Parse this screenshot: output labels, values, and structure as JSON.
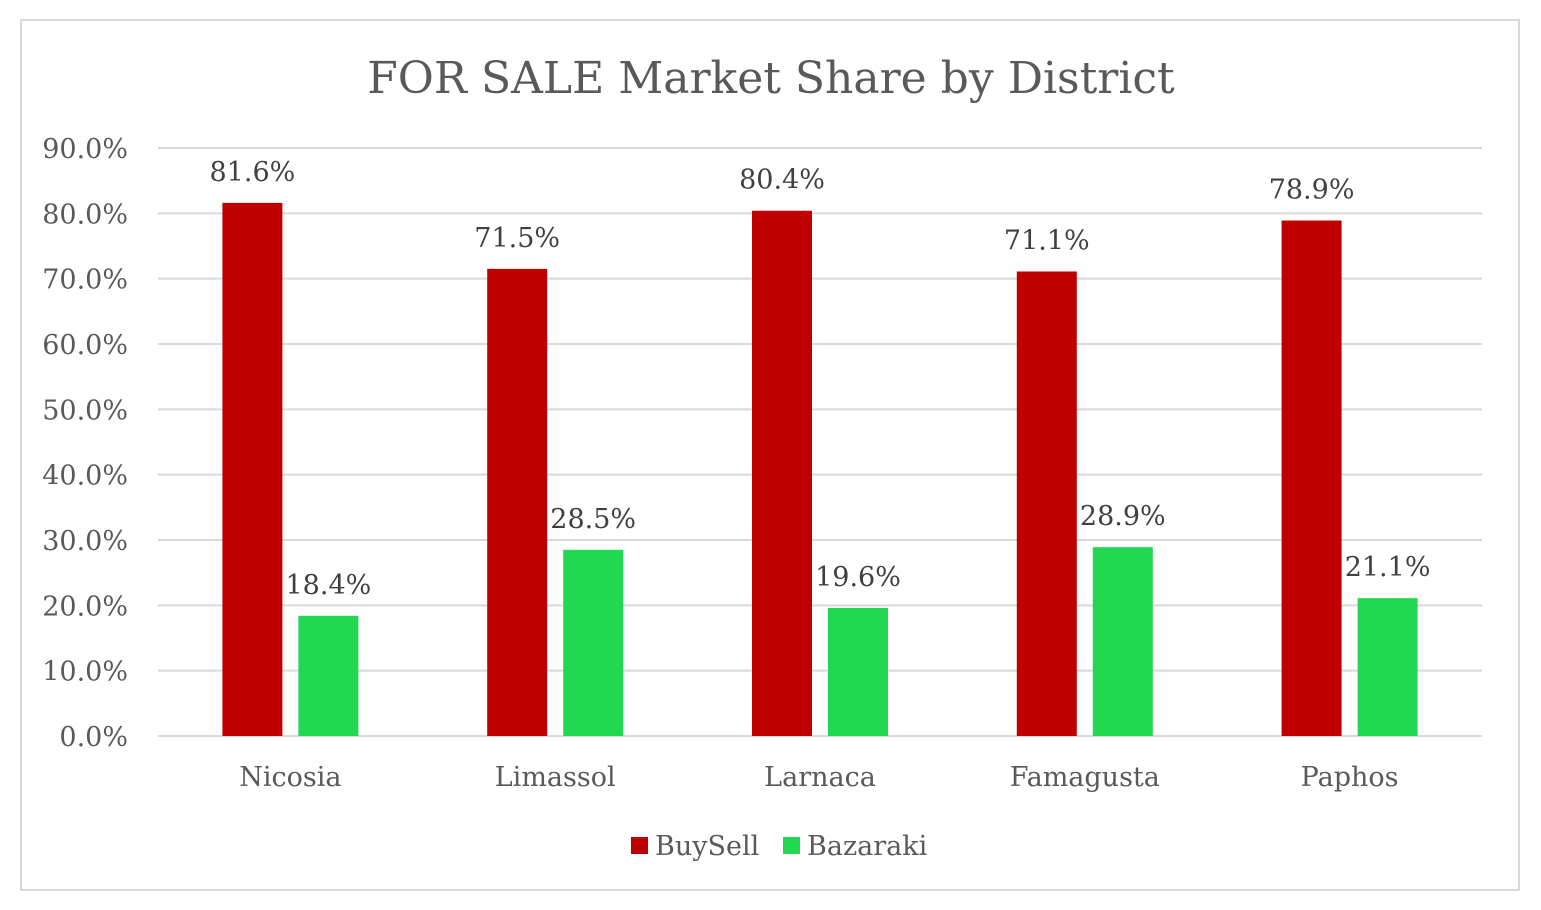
{
  "chart_data": {
    "type": "bar",
    "title": "FOR SALE Market Share by District",
    "xlabel": "",
    "ylabel": "",
    "categories": [
      "Nicosia",
      "Limassol",
      "Larnaca",
      "Famagusta",
      "Paphos"
    ],
    "series": [
      {
        "name": "BuySell",
        "color": "#c00000",
        "values": [
          81.6,
          71.5,
          80.4,
          71.1,
          78.9
        ],
        "labels": [
          "81.6%",
          "71.5%",
          "80.4%",
          "71.1%",
          "78.9%"
        ]
      },
      {
        "name": "Bazaraki",
        "color": "#21d850",
        "values": [
          18.4,
          28.5,
          19.6,
          28.9,
          21.1
        ],
        "labels": [
          "18.4%",
          "28.5%",
          "19.6%",
          "28.9%",
          "21.1%"
        ]
      }
    ],
    "ylim": [
      0,
      90
    ],
    "yticks": [
      0,
      10,
      20,
      30,
      40,
      50,
      60,
      70,
      80,
      90
    ],
    "ytick_labels": [
      "0.0%",
      "10.0%",
      "20.0%",
      "30.0%",
      "40.0%",
      "50.0%",
      "60.0%",
      "70.0%",
      "80.0%",
      "90.0%"
    ],
    "grid": true,
    "legend_position": "bottom"
  }
}
